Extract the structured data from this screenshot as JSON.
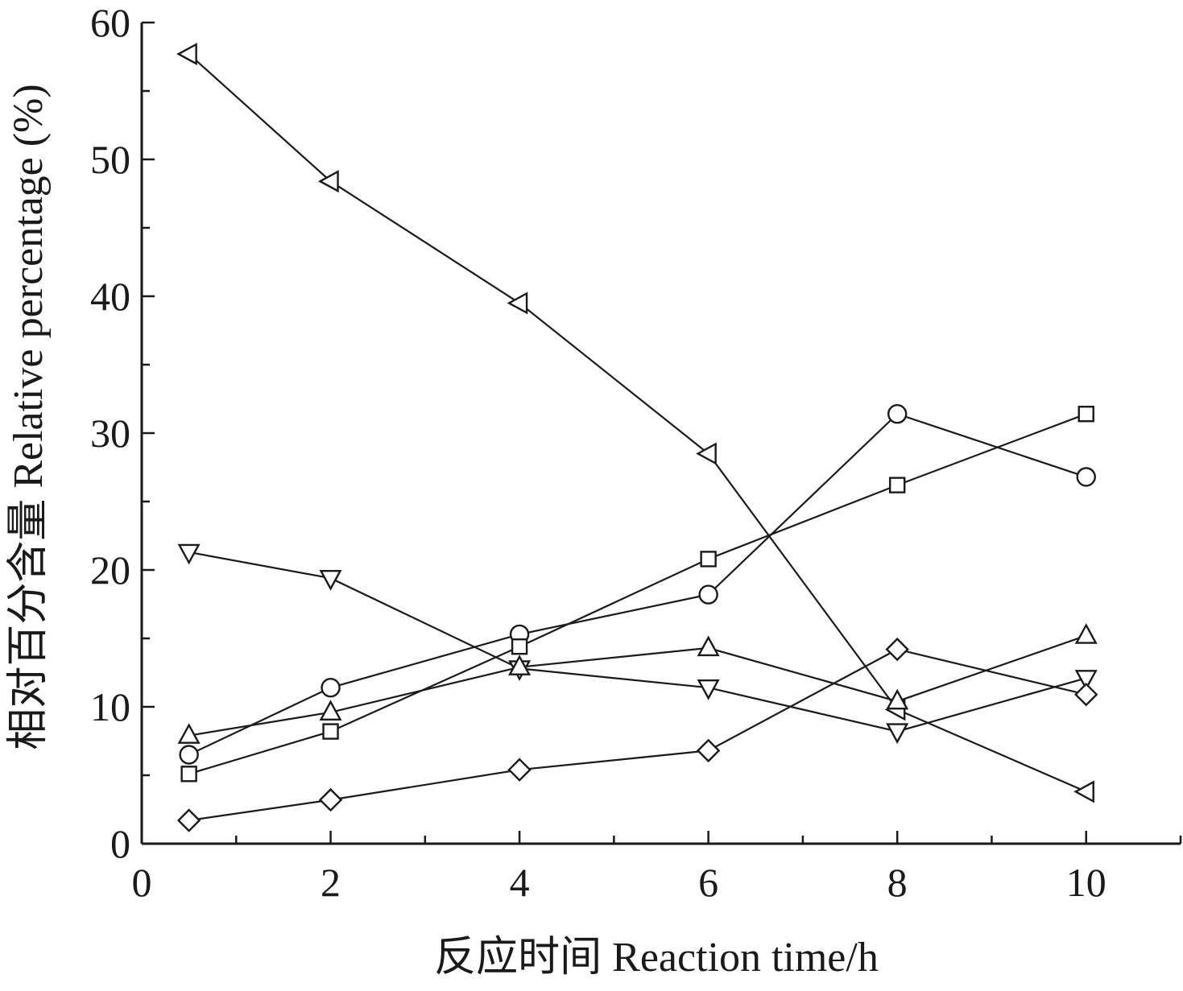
{
  "chart_data": {
    "type": "line",
    "xlabel": "反应时间  Reaction time/h",
    "ylabel": "相对百分含量  Relative percentage (%)",
    "xlim": [
      0,
      11
    ],
    "ylim": [
      0,
      60
    ],
    "xticks_labeled": [
      0,
      2,
      4,
      6,
      8,
      10
    ],
    "xticks_minor": [
      1,
      3,
      5,
      7,
      9,
      11
    ],
    "yticks_labeled": [
      0,
      10,
      20,
      30,
      40,
      50,
      60
    ],
    "yticks_minor": [
      5,
      15,
      25,
      35,
      45,
      55
    ],
    "grid": false,
    "legend": "none",
    "x": [
      0.5,
      2,
      4,
      6,
      8,
      10
    ],
    "series": [
      {
        "marker": "triangle-left",
        "values": [
          57.7,
          48.4,
          39.5,
          28.5,
          9.8,
          3.8
        ]
      },
      {
        "marker": "triangle-down",
        "values": [
          21.3,
          19.4,
          12.8,
          11.4,
          8.2,
          12.1
        ]
      },
      {
        "marker": "triangle-up",
        "values": [
          7.9,
          9.6,
          12.9,
          14.3,
          10.4,
          15.2
        ]
      },
      {
        "marker": "circle",
        "values": [
          6.5,
          11.4,
          15.3,
          18.2,
          31.4,
          26.8
        ]
      },
      {
        "marker": "square",
        "values": [
          5.1,
          8.2,
          14.4,
          20.8,
          26.2,
          31.4
        ]
      },
      {
        "marker": "diamond",
        "values": [
          1.7,
          3.2,
          5.4,
          6.8,
          14.2,
          10.9
        ]
      }
    ],
    "colors": {
      "ink": "#1a1a1a",
      "marker_fill": "#ffffff"
    }
  }
}
